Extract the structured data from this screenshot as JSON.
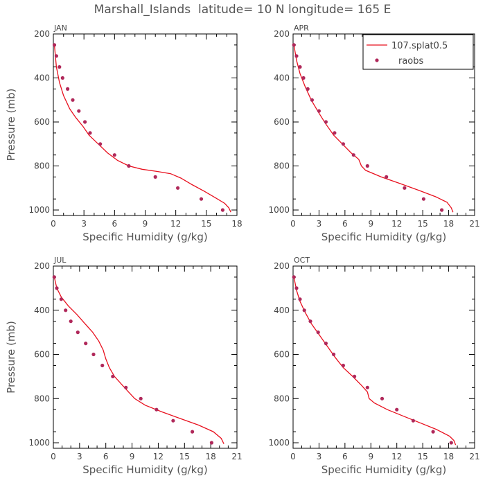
{
  "title": "Marshall_Islands  latitude= 10 N longitude= 165 E",
  "colors": {
    "model": "#e8101e",
    "obs": "#b0285a"
  },
  "legend": {
    "entries": [
      "107.splat0.5",
      "raobs"
    ],
    "placement": "top-right of APR panel"
  },
  "chart_data": [
    {
      "type": "line",
      "panel": "JAN",
      "xlabel": "Specific Humidity (g/kg)",
      "ylabel": "Pressure (mb)",
      "xlim": [
        0,
        18
      ],
      "ylim": [
        200,
        1025
      ],
      "y_inverted": true,
      "xticks": [
        0,
        3,
        6,
        9,
        12,
        15,
        18
      ],
      "yticks": [
        200,
        400,
        600,
        800,
        1000
      ],
      "series": [
        {
          "name": "107.splat0.5",
          "style": "line",
          "points": [
            [
              0.1,
              250
            ],
            [
              0.3,
              350
            ],
            [
              0.6,
              420
            ],
            [
              1.0,
              480
            ],
            [
              1.6,
              540
            ],
            [
              2.2,
              580
            ],
            [
              2.9,
              620
            ],
            [
              3.5,
              660
            ],
            [
              4.4,
              700
            ],
            [
              5.3,
              740
            ],
            [
              6.3,
              775
            ],
            [
              7.4,
              800
            ],
            [
              8.7,
              815
            ],
            [
              10.2,
              825
            ],
            [
              11.5,
              835
            ],
            [
              12.5,
              855
            ],
            [
              13.6,
              885
            ],
            [
              14.8,
              915
            ],
            [
              15.9,
              945
            ],
            [
              16.8,
              970
            ],
            [
              17.2,
              990
            ],
            [
              17.4,
              1010
            ]
          ]
        },
        {
          "name": "raobs",
          "style": "markers",
          "points": [
            [
              0.1,
              250
            ],
            [
              0.3,
              300
            ],
            [
              0.6,
              350
            ],
            [
              0.9,
              400
            ],
            [
              1.4,
              450
            ],
            [
              1.9,
              500
            ],
            [
              2.5,
              550
            ],
            [
              3.1,
              600
            ],
            [
              3.6,
              650
            ],
            [
              4.6,
              700
            ],
            [
              6.0,
              750
            ],
            [
              7.4,
              800
            ],
            [
              10.0,
              850
            ],
            [
              12.2,
              900
            ],
            [
              14.5,
              950
            ],
            [
              16.6,
              1000
            ]
          ]
        }
      ]
    },
    {
      "type": "line",
      "panel": "APR",
      "xlabel": "Specific Humidity (g/kg)",
      "ylabel": "",
      "xlim": [
        0,
        21
      ],
      "ylim": [
        200,
        1025
      ],
      "y_inverted": true,
      "xticks": [
        0,
        3,
        6,
        9,
        12,
        15,
        18,
        21
      ],
      "yticks": [
        200,
        400,
        600,
        800,
        1000
      ],
      "series": [
        {
          "name": "107.splat0.5",
          "style": "line",
          "points": [
            [
              0.1,
              250
            ],
            [
              0.4,
              320
            ],
            [
              0.8,
              380
            ],
            [
              1.4,
              440
            ],
            [
              2.1,
              500
            ],
            [
              3.0,
              560
            ],
            [
              3.8,
              610
            ],
            [
              4.7,
              660
            ],
            [
              5.7,
              700
            ],
            [
              6.7,
              740
            ],
            [
              7.6,
              770
            ],
            [
              7.9,
              800
            ],
            [
              8.4,
              820
            ],
            [
              10.2,
              850
            ],
            [
              12.4,
              880
            ],
            [
              14.5,
              910
            ],
            [
              16.5,
              940
            ],
            [
              17.8,
              965
            ],
            [
              18.3,
              990
            ],
            [
              18.5,
              1010
            ]
          ]
        },
        {
          "name": "raobs",
          "style": "markers",
          "points": [
            [
              0.1,
              250
            ],
            [
              0.4,
              300
            ],
            [
              0.8,
              350
            ],
            [
              1.2,
              400
            ],
            [
              1.7,
              450
            ],
            [
              2.2,
              500
            ],
            [
              3.0,
              550
            ],
            [
              3.8,
              600
            ],
            [
              4.8,
              650
            ],
            [
              5.8,
              700
            ],
            [
              7.0,
              750
            ],
            [
              8.6,
              800
            ],
            [
              10.8,
              850
            ],
            [
              12.9,
              900
            ],
            [
              15.1,
              950
            ],
            [
              17.2,
              1000
            ]
          ]
        }
      ]
    },
    {
      "type": "line",
      "panel": "JUL",
      "xlabel": "Specific Humidity (g/kg)",
      "ylabel": "Pressure (mb)",
      "xlim": [
        0,
        21
      ],
      "ylim": [
        200,
        1025
      ],
      "y_inverted": true,
      "xticks": [
        0,
        3,
        6,
        9,
        12,
        15,
        18,
        21
      ],
      "yticks": [
        200,
        400,
        600,
        800,
        1000
      ],
      "series": [
        {
          "name": "107.splat0.5",
          "style": "line",
          "points": [
            [
              0.1,
              250
            ],
            [
              0.4,
              300
            ],
            [
              0.9,
              340
            ],
            [
              1.7,
              380
            ],
            [
              2.7,
              420
            ],
            [
              3.6,
              460
            ],
            [
              4.5,
              500
            ],
            [
              5.2,
              540
            ],
            [
              5.7,
              580
            ],
            [
              6.0,
              620
            ],
            [
              6.4,
              660
            ],
            [
              7.0,
              700
            ],
            [
              7.9,
              740
            ],
            [
              8.6,
              770
            ],
            [
              9.3,
              800
            ],
            [
              10.5,
              830
            ],
            [
              12.4,
              860
            ],
            [
              14.5,
              890
            ],
            [
              16.6,
              920
            ],
            [
              18.3,
              950
            ],
            [
              19.2,
              980
            ],
            [
              19.5,
              1005
            ]
          ]
        },
        {
          "name": "raobs",
          "style": "markers",
          "points": [
            [
              0.1,
              250
            ],
            [
              0.4,
              300
            ],
            [
              0.9,
              350
            ],
            [
              1.4,
              400
            ],
            [
              2.0,
              450
            ],
            [
              2.8,
              500
            ],
            [
              3.7,
              550
            ],
            [
              4.6,
              600
            ],
            [
              5.6,
              650
            ],
            [
              6.8,
              700
            ],
            [
              8.3,
              750
            ],
            [
              10.0,
              800
            ],
            [
              11.8,
              850
            ],
            [
              13.7,
              900
            ],
            [
              15.9,
              950
            ],
            [
              18.1,
              1000
            ]
          ]
        }
      ]
    },
    {
      "type": "line",
      "panel": "OCT",
      "xlabel": "Specific Humidity (g/kg)",
      "ylabel": "",
      "xlim": [
        0,
        21
      ],
      "ylim": [
        200,
        1025
      ],
      "y_inverted": true,
      "xticks": [
        0,
        3,
        6,
        9,
        12,
        15,
        18,
        21
      ],
      "yticks": [
        200,
        400,
        600,
        800,
        1000
      ],
      "series": [
        {
          "name": "107.splat0.5",
          "style": "line",
          "points": [
            [
              0.1,
              250
            ],
            [
              0.4,
              310
            ],
            [
              0.8,
              360
            ],
            [
              1.4,
              410
            ],
            [
              2.1,
              460
            ],
            [
              3.0,
              510
            ],
            [
              3.9,
              560
            ],
            [
              4.8,
              610
            ],
            [
              5.8,
              660
            ],
            [
              6.9,
              700
            ],
            [
              7.9,
              740
            ],
            [
              8.6,
              770
            ],
            [
              8.8,
              800
            ],
            [
              9.4,
              820
            ],
            [
              10.9,
              850
            ],
            [
              12.8,
              880
            ],
            [
              14.7,
              910
            ],
            [
              16.6,
              940
            ],
            [
              18.1,
              970
            ],
            [
              18.6,
              990
            ],
            [
              18.8,
              1010
            ]
          ]
        },
        {
          "name": "raobs",
          "style": "markers",
          "points": [
            [
              0.1,
              250
            ],
            [
              0.4,
              300
            ],
            [
              0.8,
              350
            ],
            [
              1.3,
              400
            ],
            [
              2.0,
              450
            ],
            [
              2.9,
              500
            ],
            [
              3.8,
              550
            ],
            [
              4.7,
              600
            ],
            [
              5.8,
              650
            ],
            [
              7.1,
              700
            ],
            [
              8.6,
              750
            ],
            [
              10.3,
              800
            ],
            [
              12.0,
              850
            ],
            [
              13.9,
              900
            ],
            [
              16.2,
              950
            ],
            [
              18.3,
              1000
            ]
          ]
        }
      ]
    }
  ]
}
